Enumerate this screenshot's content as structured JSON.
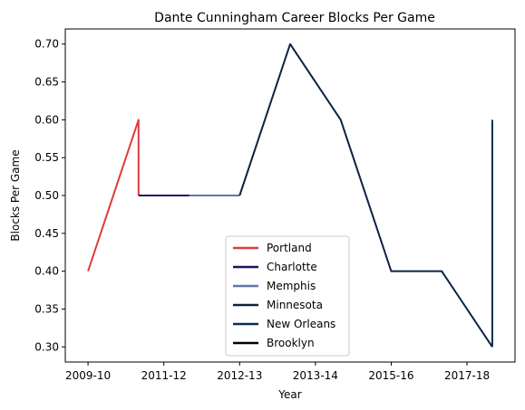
{
  "chart_data": {
    "type": "line",
    "title": "Dante Cunningham Career Blocks Per Game",
    "xlabel": "Year",
    "ylabel": "Blocks Per Game",
    "xlim": [
      -0.45,
      8.45
    ],
    "ylim": [
      0.28,
      0.72
    ],
    "x_ticks": [
      {
        "pos": 0,
        "label": "2009-10"
      },
      {
        "pos": 1.5,
        "label": "2011-12"
      },
      {
        "pos": 3,
        "label": "2012-13"
      },
      {
        "pos": 4.5,
        "label": "2013-14"
      },
      {
        "pos": 6,
        "label": "2015-16"
      },
      {
        "pos": 7.5,
        "label": "2017-18"
      }
    ],
    "y_ticks": [
      {
        "value": 0.3,
        "label": "0.30"
      },
      {
        "value": 0.35,
        "label": "0.35"
      },
      {
        "value": 0.4,
        "label": "0.40"
      },
      {
        "value": 0.45,
        "label": "0.45"
      },
      {
        "value": 0.5,
        "label": "0.50"
      },
      {
        "value": 0.55,
        "label": "0.55"
      },
      {
        "value": 0.6,
        "label": "0.60"
      },
      {
        "value": 0.65,
        "label": "0.65"
      },
      {
        "value": 0.7,
        "label": "0.70"
      }
    ],
    "series": [
      {
        "name": "Portland",
        "color": "#e03a3e",
        "points": [
          [
            0,
            0.4
          ],
          [
            1,
            0.6
          ],
          [
            1,
            0.5
          ]
        ]
      },
      {
        "name": "Charlotte",
        "color": "#1d1160",
        "points": [
          [
            1,
            0.5
          ],
          [
            2,
            0.5
          ]
        ]
      },
      {
        "name": "Memphis",
        "color": "#5d76a9",
        "points": [
          [
            2,
            0.5
          ],
          [
            3,
            0.5
          ]
        ]
      },
      {
        "name": "Minnesota",
        "color": "#0c2340",
        "points": [
          [
            3,
            0.5
          ],
          [
            4,
            0.7
          ],
          [
            5,
            0.6
          ],
          [
            6,
            0.4
          ],
          [
            7,
            0.4
          ],
          [
            8,
            0.3
          ]
        ]
      },
      {
        "name": "New Orleans",
        "color": "#0c2c56",
        "points": [
          [
            8,
            0.3
          ],
          [
            8,
            0.6
          ]
        ]
      },
      {
        "name": "Brooklyn",
        "color": "#000000",
        "points": [
          [
            8,
            0.6
          ],
          [
            8,
            0.6
          ]
        ]
      }
    ],
    "legend": {
      "position": "lower-center"
    },
    "grid": false
  }
}
